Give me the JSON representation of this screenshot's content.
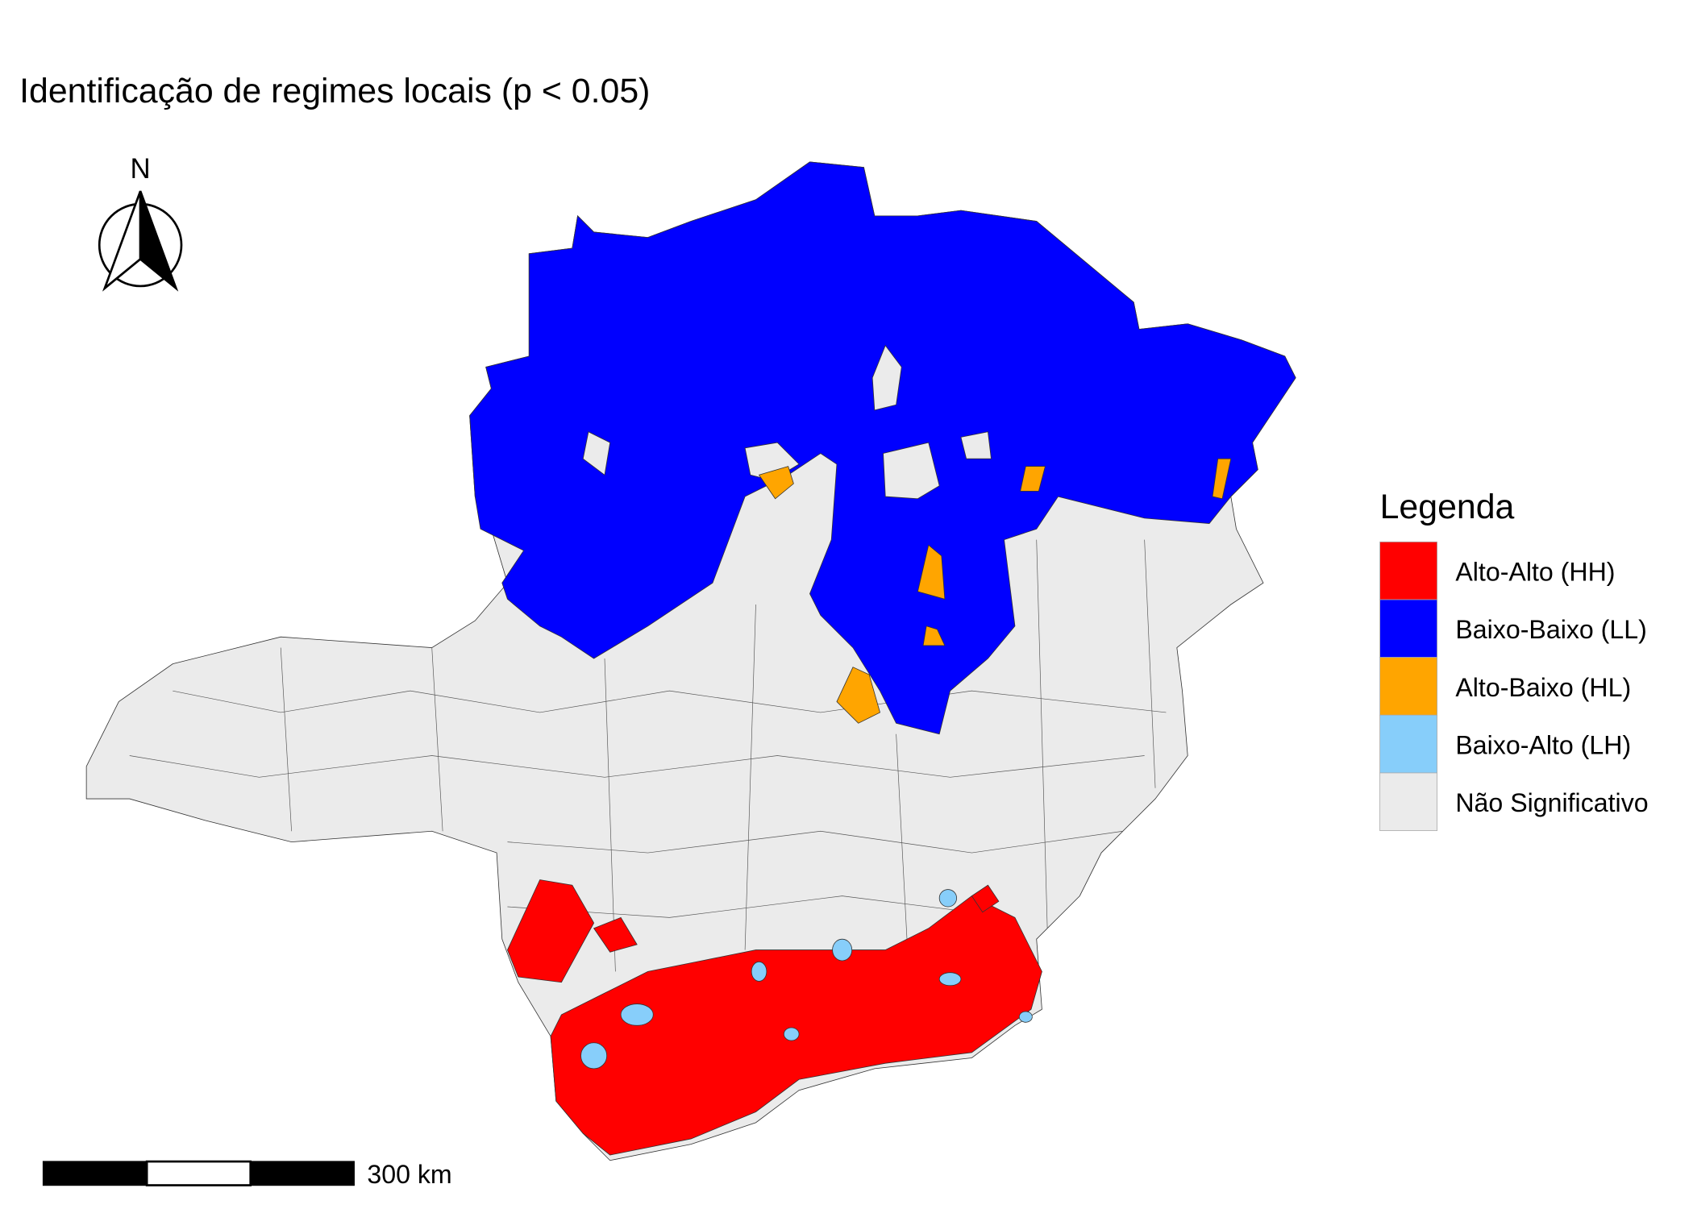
{
  "title": "Identificação de regimes locais (p < 0.05)",
  "north_arrow": {
    "label": "N"
  },
  "scale_bar": {
    "label": "300 km"
  },
  "legend": {
    "title": "Legenda",
    "items": [
      {
        "label": "Alto-Alto (HH)",
        "color": "#ff0000"
      },
      {
        "label": "Baixo-Baixo (LL)",
        "color": "#0000ff"
      },
      {
        "label": "Alto-Baixo (HL)",
        "color": "#ffa500"
      },
      {
        "label": "Baixo-Alto (LH)",
        "color": "#87cefa"
      },
      {
        "label": "Não Significativo",
        "color": "#ebebeb"
      }
    ]
  }
}
